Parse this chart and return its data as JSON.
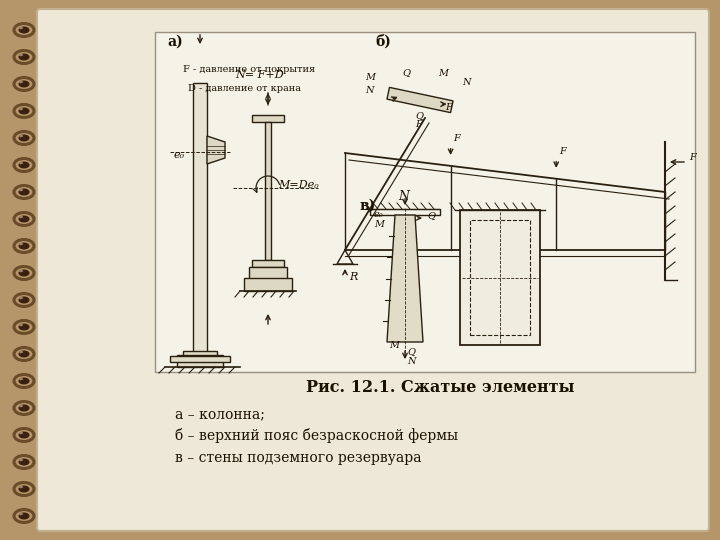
{
  "bg_color": "#b5956a",
  "page_color": "#ede8d8",
  "drawing_bg": "#f5f2e8",
  "title": "Рис. 12.1. Сжатые элементы",
  "caption_lines": [
    "а – колонна;",
    "б – верхний пояс безраскосной фермы",
    "в – стены подземного резервуара"
  ],
  "label_a": "а)",
  "label_b": "б)",
  "label_v": "в)",
  "text_F_pressure": "F - давление от покрытия",
  "text_D_pressure": "D - давление от крана",
  "text_NFD": "N= F+D",
  "text_MDe": "M=De₀",
  "text_e0": "e₀",
  "spiral_color": "#6a4c28",
  "spiral_inner": "#3a2010",
  "dc": "#2a2010"
}
